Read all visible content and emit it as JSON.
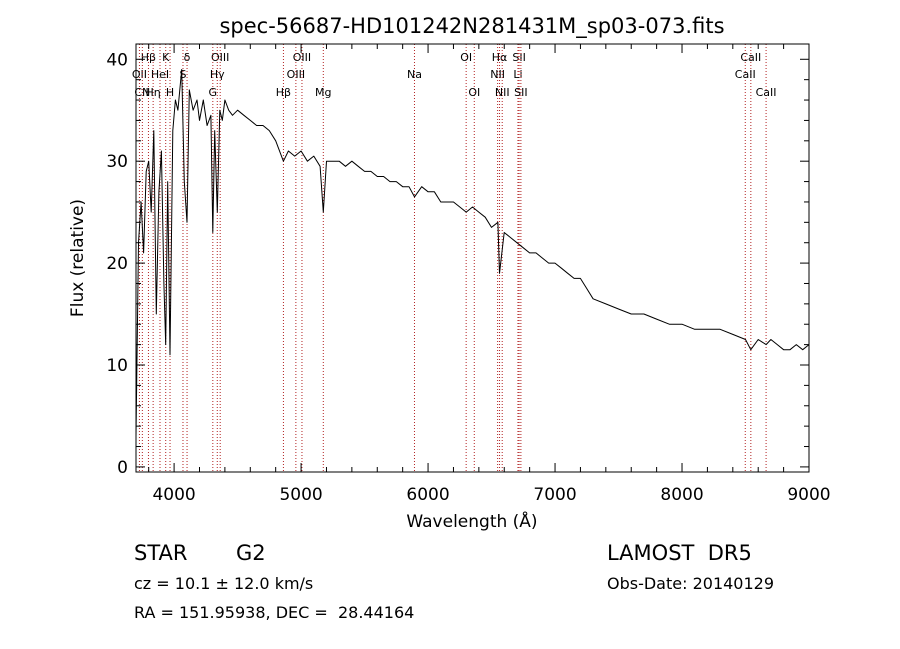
{
  "chart_data": {
    "type": "line",
    "title": "spec-56687-HD101242N281431M_sp03-073.fits",
    "xlabel": "Wavelength (Å)",
    "ylabel": "Flux (relative)",
    "xlim": [
      3700,
      9000
    ],
    "ylim": [
      -0.5,
      41.5
    ],
    "xticks": [
      4000,
      5000,
      6000,
      7000,
      8000,
      9000
    ],
    "yticks": [
      0,
      10,
      20,
      30,
      40
    ],
    "grid": false,
    "line_color": "#000000",
    "marker_color": "#b22222",
    "spectrum": {
      "x": [
        3700,
        3720,
        3740,
        3760,
        3780,
        3800,
        3820,
        3840,
        3860,
        3880,
        3900,
        3920,
        3934,
        3950,
        3968,
        3990,
        4010,
        4030,
        4060,
        4080,
        4102,
        4120,
        4150,
        4180,
        4200,
        4230,
        4260,
        4290,
        4305,
        4320,
        4340,
        4360,
        4380,
        4400,
        4430,
        4460,
        4500,
        4550,
        4600,
        4650,
        4700,
        4750,
        4800,
        4861,
        4900,
        4950,
        5000,
        5050,
        5100,
        5150,
        5175,
        5200,
        5250,
        5300,
        5350,
        5400,
        5450,
        5500,
        5550,
        5600,
        5650,
        5700,
        5750,
        5800,
        5850,
        5893,
        5950,
        6000,
        6050,
        6100,
        6150,
        6200,
        6250,
        6300,
        6350,
        6400,
        6450,
        6500,
        6550,
        6563,
        6600,
        6650,
        6700,
        6750,
        6800,
        6850,
        6900,
        6950,
        7000,
        7050,
        7100,
        7150,
        7200,
        7250,
        7300,
        7400,
        7500,
        7600,
        7700,
        7800,
        7900,
        8000,
        8100,
        8200,
        8300,
        8400,
        8500,
        8542,
        8600,
        8662,
        8700,
        8750,
        8800,
        8850,
        8900,
        8950,
        9000
      ],
      "y": [
        3.0,
        22.0,
        26.0,
        21.0,
        29.0,
        30.0,
        25.0,
        33.0,
        15.0,
        27.0,
        31.0,
        18.0,
        12.0,
        28.0,
        11.0,
        33.0,
        36.0,
        35.0,
        39.0,
        28.0,
        24.0,
        37.0,
        35.0,
        36.0,
        34.0,
        36.0,
        33.5,
        34.5,
        23.0,
        33.0,
        25.0,
        35.0,
        34.0,
        36.0,
        35.0,
        34.5,
        35.0,
        34.5,
        34.0,
        33.5,
        33.5,
        33.0,
        32.0,
        30.0,
        31.0,
        30.5,
        31.0,
        30.0,
        30.5,
        29.5,
        25.0,
        30.0,
        30.0,
        30.0,
        29.5,
        30.0,
        29.5,
        29.0,
        29.0,
        28.5,
        28.5,
        28.0,
        28.0,
        27.5,
        27.5,
        26.5,
        27.5,
        27.0,
        27.0,
        26.0,
        26.0,
        26.0,
        25.5,
        25.0,
        25.5,
        25.0,
        24.5,
        23.5,
        24.0,
        19.0,
        23.0,
        22.5,
        22.0,
        21.5,
        21.0,
        21.0,
        20.5,
        20.0,
        20.0,
        19.5,
        19.0,
        18.5,
        18.5,
        17.5,
        16.5,
        16.0,
        15.5,
        15.0,
        15.0,
        14.5,
        14.0,
        14.0,
        13.5,
        13.5,
        13.5,
        13.0,
        12.5,
        11.5,
        12.5,
        12.0,
        12.5,
        12.0,
        11.5,
        11.5,
        12.0,
        11.5,
        12.0
      ]
    },
    "line_markers": [
      {
        "label": "Hβ",
        "wavelength": 3798,
        "row": 0
      },
      {
        "label": "OII",
        "wavelength": 3727,
        "row": 1
      },
      {
        "label": "CN",
        "wavelength": 3750,
        "row": 2
      },
      {
        "label": "K",
        "wavelength": 3934,
        "row": 0
      },
      {
        "label": "HeI",
        "wavelength": 3889,
        "row": 1
      },
      {
        "label": "Hη",
        "wavelength": 3835,
        "row": 2
      },
      {
        "label": "H",
        "wavelength": 3968,
        "row": 2
      },
      {
        "label": "δ",
        "wavelength": 4102,
        "row": 0
      },
      {
        "label": "S",
        "wavelength": 4070,
        "row": 1
      },
      {
        "label": "OIII",
        "wavelength": 4363,
        "row": 0
      },
      {
        "label": "Hγ",
        "wavelength": 4340,
        "row": 1
      },
      {
        "label": "G",
        "wavelength": 4305,
        "row": 2
      },
      {
        "label": "Hβ",
        "wavelength": 4861,
        "row": 2
      },
      {
        "label": "OIII",
        "wavelength": 5007,
        "row": 0
      },
      {
        "label": "OIII",
        "wavelength": 4959,
        "row": 1
      },
      {
        "label": "Mg",
        "wavelength": 5175,
        "row": 2
      },
      {
        "label": "Na",
        "wavelength": 5893,
        "row": 1
      },
      {
        "label": "OI",
        "wavelength": 6300,
        "row": 0
      },
      {
        "label": "OI",
        "wavelength": 6364,
        "row": 2
      },
      {
        "label": "Hα",
        "wavelength": 6563,
        "row": 0
      },
      {
        "label": "NII",
        "wavelength": 6548,
        "row": 1
      },
      {
        "label": "NII",
        "wavelength": 6584,
        "row": 2
      },
      {
        "label": "SII",
        "wavelength": 6717,
        "row": 0
      },
      {
        "label": "Li",
        "wavelength": 6708,
        "row": 1
      },
      {
        "label": "SII",
        "wavelength": 6731,
        "row": 2
      },
      {
        "label": "CaII",
        "wavelength": 8542,
        "row": 0
      },
      {
        "label": "CaII",
        "wavelength": 8498,
        "row": 1
      },
      {
        "label": "CaII",
        "wavelength": 8662,
        "row": 2
      }
    ]
  },
  "footer": {
    "object_class": "STAR",
    "subclass": "G2",
    "survey": "LAMOST  DR5",
    "redshift": "cz = 10.1 ± 12.0 km/s",
    "obs_date": "Obs-Date: 20140129",
    "coordinates": "RA = 151.95938, DEC =  28.44164"
  }
}
